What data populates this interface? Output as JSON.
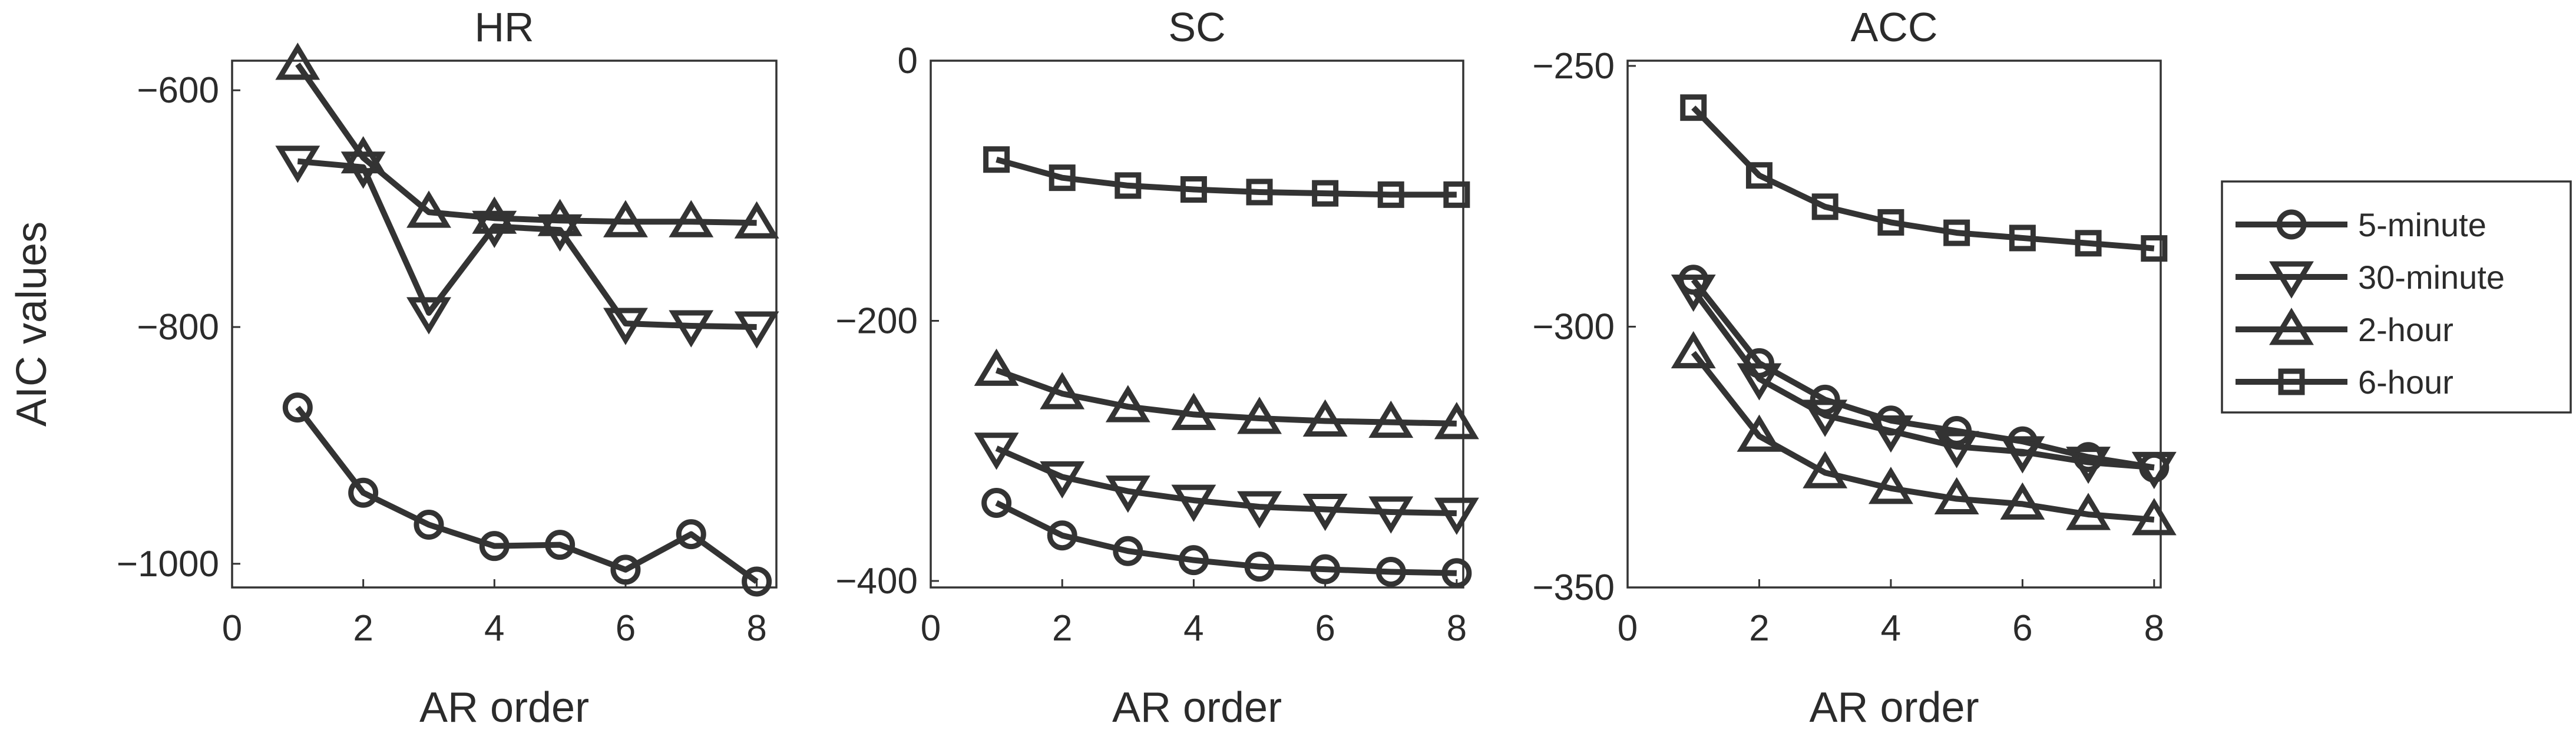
{
  "figure": {
    "ylabel": "AIC values",
    "legend": {
      "placement": "right",
      "entries": [
        {
          "label": "5-minute",
          "marker": "circle"
        },
        {
          "label": "30-minute",
          "marker": "triangle-down"
        },
        {
          "label": "2-hour",
          "marker": "triangle-up"
        },
        {
          "label": "6-hour",
          "marker": "square"
        }
      ]
    },
    "colors": {
      "line": "#333333",
      "text": "#2b2b2b",
      "background": "#ffffff"
    }
  },
  "chart_data": [
    {
      "type": "line",
      "title": "HR",
      "xlabel": "AR order",
      "ylabel": "AIC values",
      "xlim": [
        0,
        8.3
      ],
      "ylim": [
        -1020,
        -575
      ],
      "xticks": [
        0,
        2,
        4,
        6,
        8
      ],
      "yticks": [
        -600,
        -800,
        -1000
      ],
      "ytick_labels": [
        "−600",
        "−800",
        "−1000"
      ],
      "x": [
        1,
        2,
        3,
        4,
        5,
        6,
        7,
        8
      ],
      "series": [
        {
          "name": "5-minute",
          "marker": "circle",
          "values": [
            -868,
            -940,
            -967,
            -985,
            -984,
            -1005,
            -975,
            -1015
          ]
        },
        {
          "name": "30-minute",
          "marker": "triangle-down",
          "values": [
            -660,
            -665,
            -788,
            -715,
            -718,
            -797,
            -799,
            -800
          ]
        },
        {
          "name": "2-hour",
          "marker": "triangle-up",
          "values": [
            -578,
            -657,
            -703,
            -708,
            -710,
            -711,
            -711,
            -712
          ]
        },
        {
          "name": "6-hour",
          "marker": "square",
          "values": [
            null,
            null,
            null,
            null,
            null,
            null,
            null,
            null
          ]
        }
      ]
    },
    {
      "type": "line",
      "title": "SC",
      "xlabel": "AR order",
      "ylabel": "",
      "xlim": [
        0,
        8.1
      ],
      "ylim": [
        -405,
        0
      ],
      "xticks": [
        0,
        2,
        4,
        6,
        8
      ],
      "yticks": [
        0,
        -200,
        -400
      ],
      "ytick_labels": [
        "0",
        "−200",
        "−400"
      ],
      "x": [
        1,
        2,
        3,
        4,
        5,
        6,
        7,
        8
      ],
      "series": [
        {
          "name": "5-minute",
          "marker": "circle",
          "values": [
            -340,
            -365,
            -377,
            -384,
            -389,
            -391,
            -393,
            -394
          ]
        },
        {
          "name": "30-minute",
          "marker": "triangle-down",
          "values": [
            -298,
            -320,
            -331,
            -338,
            -343,
            -345,
            -347,
            -348
          ]
        },
        {
          "name": "2-hour",
          "marker": "triangle-up",
          "values": [
            -238,
            -256,
            -266,
            -272,
            -275,
            -277,
            -278,
            -279
          ]
        },
        {
          "name": "6-hour",
          "marker": "square",
          "values": [
            -76,
            -90,
            -96,
            -99,
            -101,
            -102,
            -103,
            -103
          ]
        }
      ]
    },
    {
      "type": "line",
      "title": "ACC",
      "xlabel": "AR order",
      "ylabel": "",
      "xlim": [
        0,
        8.1
      ],
      "ylim": [
        -350,
        -249
      ],
      "xticks": [
        0,
        2,
        4,
        6,
        8
      ],
      "yticks": [
        -250,
        -300,
        -350
      ],
      "ytick_labels": [
        "−250",
        "−300",
        "−350"
      ],
      "x": [
        1,
        2,
        3,
        4,
        5,
        6,
        7,
        8
      ],
      "series": [
        {
          "name": "5-minute",
          "marker": "circle",
          "values": [
            -291,
            -307,
            -314,
            -318,
            -320,
            -322,
            -325,
            -327
          ]
        },
        {
          "name": "30-minute",
          "marker": "triangle-down",
          "values": [
            -293,
            -310,
            -317,
            -320,
            -323,
            -324,
            -326,
            -327
          ]
        },
        {
          "name": "2-hour",
          "marker": "triangle-up",
          "values": [
            -305,
            -321,
            -328,
            -331,
            -333,
            -334,
            -336,
            -337
          ]
        },
        {
          "name": "6-hour",
          "marker": "square",
          "values": [
            -258,
            -271,
            -277,
            -280,
            -282,
            -283,
            -284,
            -285
          ]
        }
      ]
    }
  ]
}
